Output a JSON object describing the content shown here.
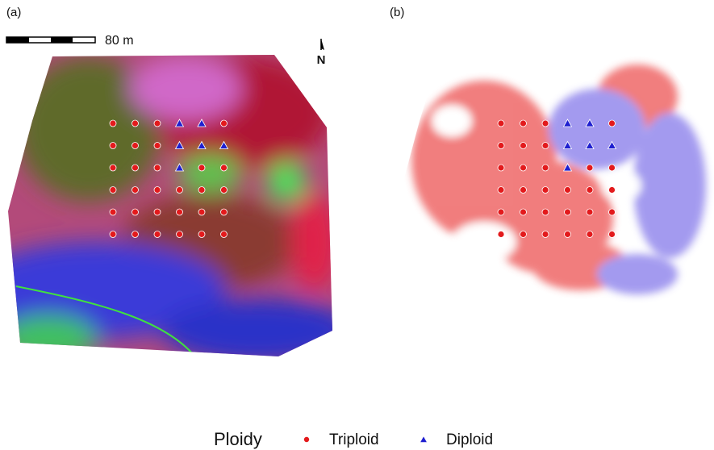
{
  "panels": [
    {
      "label": "(a)",
      "scale_bar": "80 m",
      "north": "N"
    },
    {
      "label": "(b)"
    }
  ],
  "legend": {
    "title": "Ploidy",
    "items": [
      {
        "label": "Triploid",
        "color": "#e31a1c",
        "shape": "circle"
      },
      {
        "label": "Diploid",
        "color": "#1f1fd0",
        "shape": "triangle"
      }
    ]
  },
  "samples": [
    [
      0,
      0,
      0,
      1,
      1,
      0
    ],
    [
      0,
      0,
      0,
      1,
      1,
      1
    ],
    [
      0,
      0,
      0,
      1,
      0,
      0
    ],
    [
      0,
      0,
      0,
      0,
      0,
      0
    ],
    [
      0,
      0,
      0,
      0,
      0,
      0
    ],
    [
      0,
      0,
      0,
      0,
      0,
      0
    ]
  ]
}
